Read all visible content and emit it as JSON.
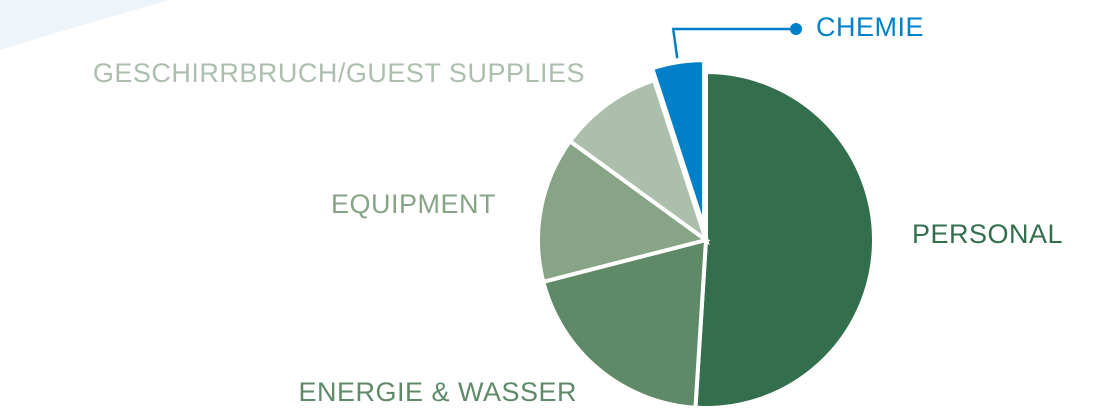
{
  "chart_data": {
    "type": "pie",
    "categories": [
      "PERSONAL",
      "ENERGIE & WASSER",
      "EQUIPMENT",
      "GESCHIRRBRUCH/GUEST SUPPLIES",
      "CHEMIE"
    ],
    "values": [
      51,
      20,
      14,
      10,
      5
    ],
    "colors": [
      "#336f4c",
      "#5f8a67",
      "#87a487",
      "#acbfac",
      "#0080c8"
    ],
    "exploded": [
      false,
      false,
      false,
      false,
      true
    ]
  }
}
